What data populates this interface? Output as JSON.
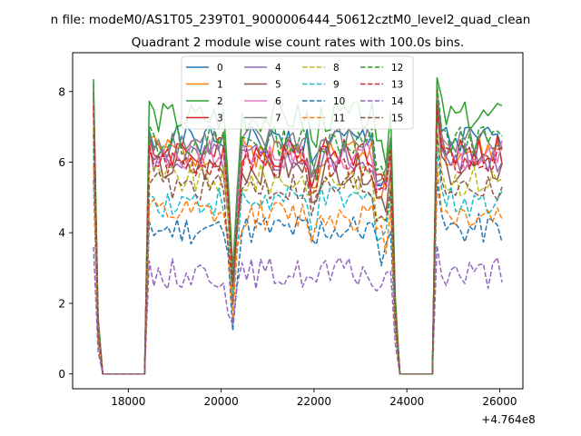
{
  "chart_data": {
    "type": "line",
    "suptitle": "n file: modeM0/AS1T05_239T01_9000006444_50612cztM0_level2_quad_clean",
    "title": "Quadrant 2 module wise count rates with 100.0s bins.",
    "xlabel": "",
    "ylabel": "",
    "x_offset_label": "+4.764e8",
    "xlim": [
      16800,
      26500
    ],
    "ylim": [
      -0.42,
      9.1
    ],
    "xticks": [
      18000,
      20000,
      22000,
      24000,
      26000
    ],
    "xtick_labels": [
      "18000",
      "20000",
      "22000",
      "24000",
      "26000"
    ],
    "yticks": [
      0,
      2,
      4,
      6,
      8
    ],
    "ytick_labels": [
      "0",
      "2",
      "4",
      "6",
      "8"
    ],
    "grid": false,
    "legend_position": "top-center",
    "x": [
      17250,
      17350,
      17450,
      17550,
      17650,
      17750,
      17850,
      17950,
      18050,
      18150,
      18250,
      18350,
      18450,
      18550,
      18650,
      18750,
      18850,
      18950,
      19050,
      19150,
      19250,
      19350,
      19450,
      19550,
      19650,
      19750,
      19850,
      19950,
      20050,
      20150,
      20250,
      20350,
      20450,
      20550,
      20650,
      20750,
      20850,
      20950,
      21050,
      21150,
      21250,
      21350,
      21450,
      21550,
      21650,
      21750,
      21850,
      21950,
      22050,
      22150,
      22250,
      22350,
      22450,
      22550,
      22650,
      22750,
      22850,
      22950,
      23050,
      23150,
      23250,
      23350,
      23450,
      23550,
      23650,
      23750,
      23850,
      23950,
      24050,
      24150,
      24250,
      24350,
      24450,
      24550,
      24650,
      24750,
      24850,
      24950,
      25050,
      25150,
      25250,
      25350,
      25450,
      25550,
      25650,
      25750,
      25850,
      25950,
      26050
    ],
    "series": [
      {
        "name": "0",
        "color": "#1f77b4",
        "dash": "solid",
        "base": 6.6,
        "peak": 8.0,
        "seed": 1
      },
      {
        "name": "1",
        "color": "#ff7f0e",
        "dash": "solid",
        "base": 6.3,
        "peak": 7.6,
        "seed": 2
      },
      {
        "name": "2",
        "color": "#2ca02c",
        "dash": "solid",
        "base": 7.3,
        "peak": 8.35,
        "seed": 3
      },
      {
        "name": "3",
        "color": "#d62728",
        "dash": "solid",
        "base": 6.3,
        "peak": 8.0,
        "seed": 4
      },
      {
        "name": "4",
        "color": "#9467bd",
        "dash": "solid",
        "base": 6.1,
        "peak": 7.7,
        "seed": 5
      },
      {
        "name": "5",
        "color": "#8c564b",
        "dash": "solid",
        "base": 5.8,
        "peak": 7.4,
        "seed": 6
      },
      {
        "name": "6",
        "color": "#e377c2",
        "dash": "solid",
        "base": 6.2,
        "peak": 7.8,
        "seed": 7
      },
      {
        "name": "7",
        "color": "#7f7f7f",
        "dash": "solid",
        "base": 6.6,
        "peak": 7.9,
        "seed": 8
      },
      {
        "name": "8",
        "color": "#bcbd22",
        "dash": "dashed",
        "base": 5.5,
        "peak": 7.0,
        "seed": 9
      },
      {
        "name": "9",
        "color": "#17becf",
        "dash": "dashed",
        "base": 4.9,
        "peak": 6.4,
        "seed": 10
      },
      {
        "name": "10",
        "color": "#1f77b4",
        "dash": "dashed",
        "base": 4.1,
        "peak": 5.5,
        "seed": 11
      },
      {
        "name": "11",
        "color": "#ff7f0e",
        "dash": "dashed",
        "base": 4.5,
        "peak": 5.9,
        "seed": 12
      },
      {
        "name": "12",
        "color": "#2ca02c",
        "dash": "dashed",
        "base": 6.6,
        "peak": 8.2,
        "seed": 13
      },
      {
        "name": "13",
        "color": "#d62728",
        "dash": "dashed",
        "base": 6.0,
        "peak": 7.6,
        "seed": 14
      },
      {
        "name": "14",
        "color": "#9467bd",
        "dash": "dashed",
        "base": 2.85,
        "peak": 3.6,
        "seed": 15
      },
      {
        "name": "15",
        "color": "#8c564b",
        "dash": "dashed",
        "base": 5.3,
        "peak": 6.8,
        "seed": 16
      }
    ]
  }
}
